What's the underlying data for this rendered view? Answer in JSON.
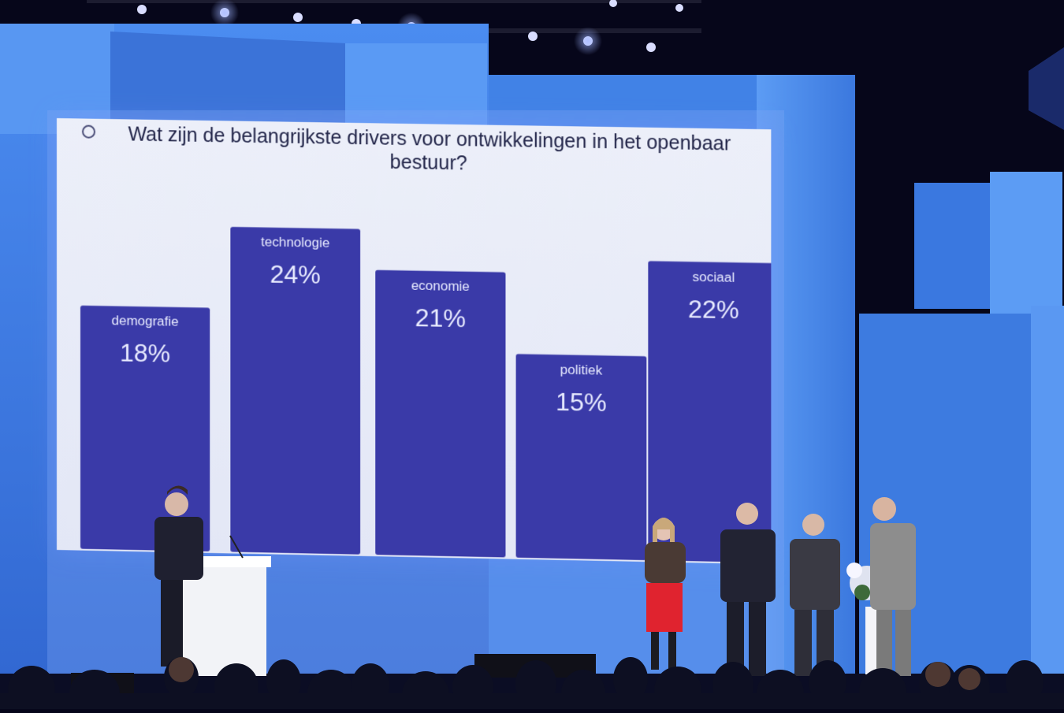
{
  "chart_data": {
    "type": "bar",
    "title": "Wat zijn de belangrijkste drivers voor ontwikkelingen in het openbaar bestuur?",
    "categories": [
      "demografie",
      "technologie",
      "economie",
      "politiek",
      "sociaal"
    ],
    "values": [
      18,
      24,
      21,
      15,
      22
    ],
    "value_labels": [
      "18%",
      "24%",
      "21%",
      "15%",
      "22%"
    ],
    "unit": "%",
    "xlabel": "",
    "ylabel": "",
    "ylim": [
      0,
      26
    ],
    "grid": false,
    "legend": "none",
    "bar_color": "#3a3aa8"
  },
  "colors": {
    "stage_blue": "#3f7fe0",
    "screen_bg": "#e6e9f7",
    "title_text": "#23264a"
  }
}
